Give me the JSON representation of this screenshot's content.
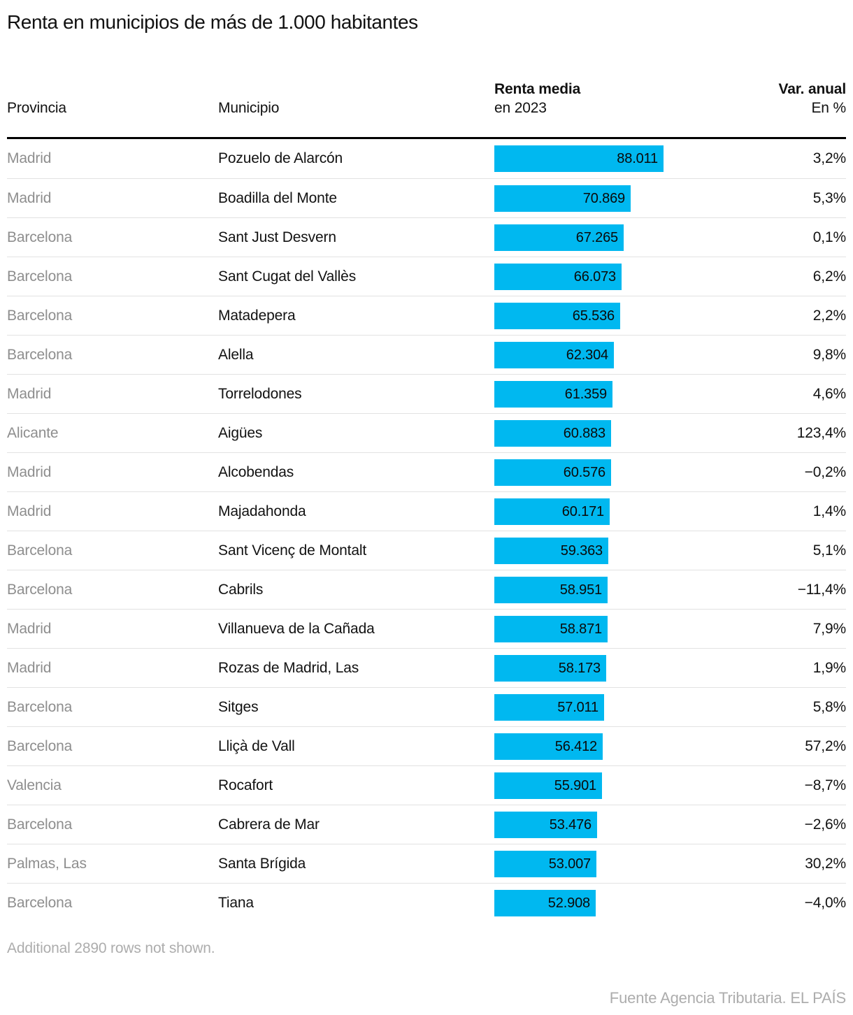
{
  "title": "Renta en municipios de más de 1.000 habitantes",
  "table": {
    "col_provincia": "Provincia",
    "col_municipio": "Municipio",
    "col_renta_bold": "Renta media",
    "col_renta_sub": "en 2023",
    "col_var_bold": "Var. anual",
    "col_var_sub": "En %"
  },
  "footer": {
    "note": "Additional 2890 rows not shown.",
    "source": "Fuente Agencia Tributaria. EL PAÍS"
  },
  "chart_data": {
    "type": "bar",
    "title": "Renta en municipios de más de 1.000 habitantes",
    "columns": [
      "Provincia",
      "Municipio",
      "Renta media en 2023",
      "Var. anual En %"
    ],
    "bar_color": "#00b8f0",
    "value_axis_min": 0,
    "value_axis_max": 88011,
    "rows": [
      {
        "provincia": "Madrid",
        "municipio": "Pozuelo de Alarcón",
        "renta": 88011,
        "renta_label": "88.011",
        "var": "3,2%"
      },
      {
        "provincia": "Madrid",
        "municipio": "Boadilla del Monte",
        "renta": 70869,
        "renta_label": "70.869",
        "var": "5,3%"
      },
      {
        "provincia": "Barcelona",
        "municipio": "Sant Just Desvern",
        "renta": 67265,
        "renta_label": "67.265",
        "var": "0,1%"
      },
      {
        "provincia": "Barcelona",
        "municipio": "Sant Cugat del Vallès",
        "renta": 66073,
        "renta_label": "66.073",
        "var": "6,2%"
      },
      {
        "provincia": "Barcelona",
        "municipio": "Matadepera",
        "renta": 65536,
        "renta_label": "65.536",
        "var": "2,2%"
      },
      {
        "provincia": "Barcelona",
        "municipio": "Alella",
        "renta": 62304,
        "renta_label": "62.304",
        "var": "9,8%"
      },
      {
        "provincia": "Madrid",
        "municipio": "Torrelodones",
        "renta": 61359,
        "renta_label": "61.359",
        "var": "4,6%"
      },
      {
        "provincia": "Alicante",
        "municipio": "Aigües",
        "renta": 60883,
        "renta_label": "60.883",
        "var": "123,4%"
      },
      {
        "provincia": "Madrid",
        "municipio": "Alcobendas",
        "renta": 60576,
        "renta_label": "60.576",
        "var": "−0,2%"
      },
      {
        "provincia": "Madrid",
        "municipio": "Majadahonda",
        "renta": 60171,
        "renta_label": "60.171",
        "var": "1,4%"
      },
      {
        "provincia": "Barcelona",
        "municipio": "Sant Vicenç de Montalt",
        "renta": 59363,
        "renta_label": "59.363",
        "var": "5,1%"
      },
      {
        "provincia": "Barcelona",
        "municipio": "Cabrils",
        "renta": 58951,
        "renta_label": "58.951",
        "var": "−11,4%"
      },
      {
        "provincia": "Madrid",
        "municipio": "Villanueva de la Cañada",
        "renta": 58871,
        "renta_label": "58.871",
        "var": "7,9%"
      },
      {
        "provincia": "Madrid",
        "municipio": "Rozas de Madrid, Las",
        "renta": 58173,
        "renta_label": "58.173",
        "var": "1,9%"
      },
      {
        "provincia": "Barcelona",
        "municipio": "Sitges",
        "renta": 57011,
        "renta_label": "57.011",
        "var": "5,8%"
      },
      {
        "provincia": "Barcelona",
        "municipio": "Lliçà de Vall",
        "renta": 56412,
        "renta_label": "56.412",
        "var": "57,2%"
      },
      {
        "provincia": "Valencia",
        "municipio": "Rocafort",
        "renta": 55901,
        "renta_label": "55.901",
        "var": "−8,7%"
      },
      {
        "provincia": "Barcelona",
        "municipio": "Cabrera de Mar",
        "renta": 53476,
        "renta_label": "53.476",
        "var": "−2,6%"
      },
      {
        "provincia": "Palmas, Las",
        "municipio": "Santa Brígida",
        "renta": 53007,
        "renta_label": "53.007",
        "var": "30,2%"
      },
      {
        "provincia": "Barcelona",
        "municipio": "Tiana",
        "renta": 52908,
        "renta_label": "52.908",
        "var": "−4,0%"
      }
    ]
  }
}
